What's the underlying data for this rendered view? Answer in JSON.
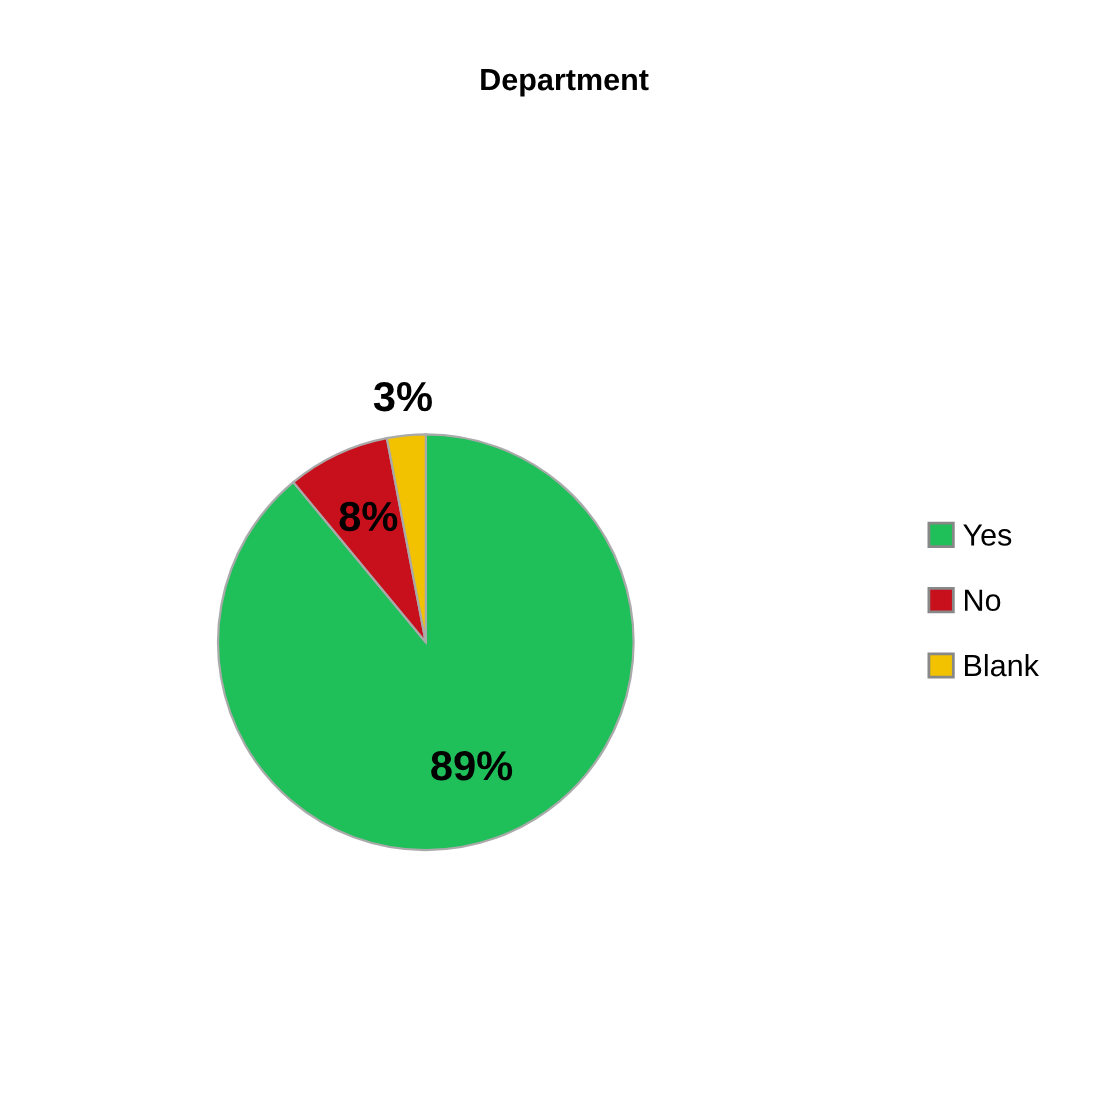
{
  "chart_data": {
    "type": "pie",
    "title": "Department",
    "categories": [
      "Yes",
      "No",
      "Blank"
    ],
    "values": [
      89,
      8,
      3
    ],
    "colors": [
      "#1fbf5a",
      "#c8101c",
      "#f2c200"
    ],
    "value_labels": [
      "89%",
      "8%",
      "3%"
    ],
    "legend": "right"
  }
}
